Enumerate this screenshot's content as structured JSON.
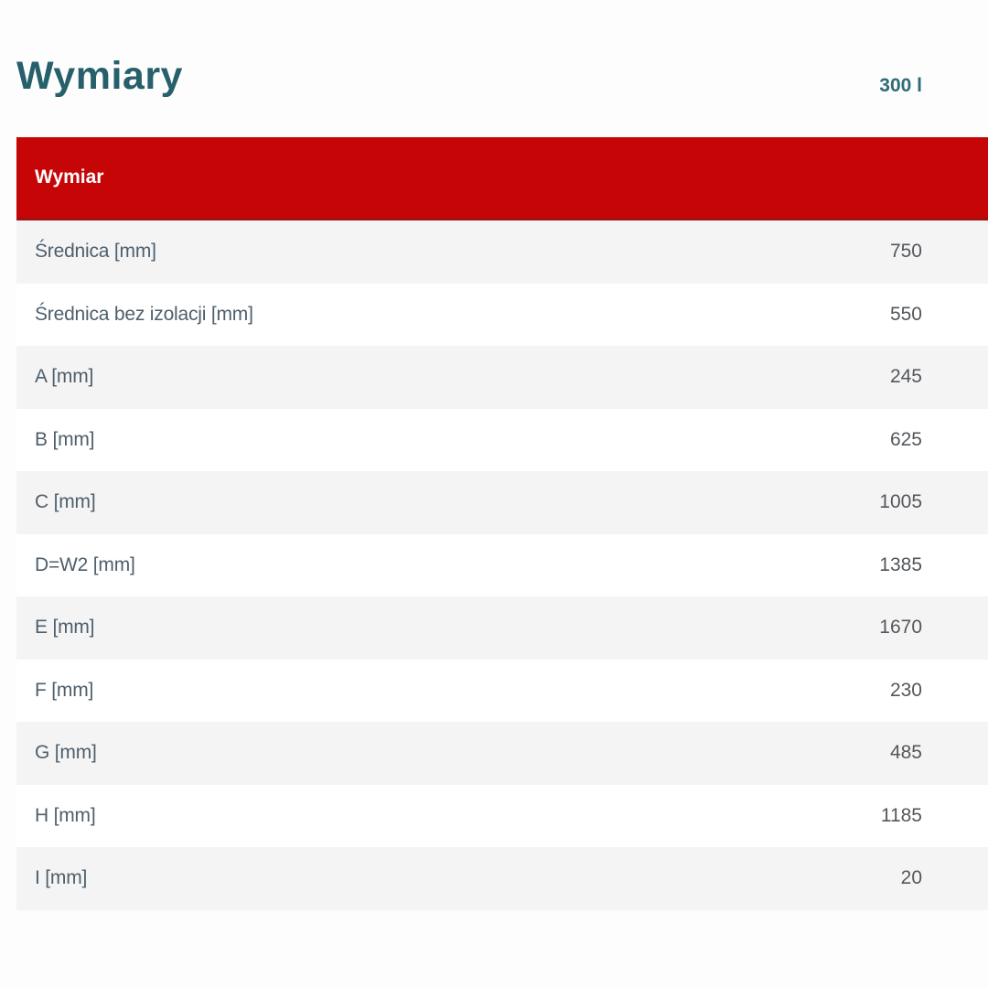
{
  "page": {
    "title": "Wymiary",
    "capacity_label": "300 l"
  },
  "table": {
    "header": "Wymiar",
    "rows": [
      {
        "label": "Średnica [mm]",
        "value": "750"
      },
      {
        "label": "Średnica bez izolacji [mm]",
        "value": "550"
      },
      {
        "label": "A [mm]",
        "value": "245"
      },
      {
        "label": "B [mm]",
        "value": "625"
      },
      {
        "label": "C [mm]",
        "value": "1005"
      },
      {
        "label": "D=W2 [mm]",
        "value": "1385"
      },
      {
        "label": "E [mm]",
        "value": "1670"
      },
      {
        "label": "F [mm]",
        "value": "230"
      },
      {
        "label": "G [mm]",
        "value": "485"
      },
      {
        "label": "H [mm]",
        "value": "1185"
      },
      {
        "label": "I [mm]",
        "value": "20"
      }
    ]
  },
  "colors": {
    "header_red": "#c60507",
    "header_red_dark": "#9f1012",
    "title_teal": "#26606b",
    "capacity_teal": "#2f6b77",
    "label_slate": "#4e5f6b",
    "value_gray": "#53575b",
    "row_alt_bg": "#f4f4f5",
    "page_bg": "#fdfdfd"
  }
}
